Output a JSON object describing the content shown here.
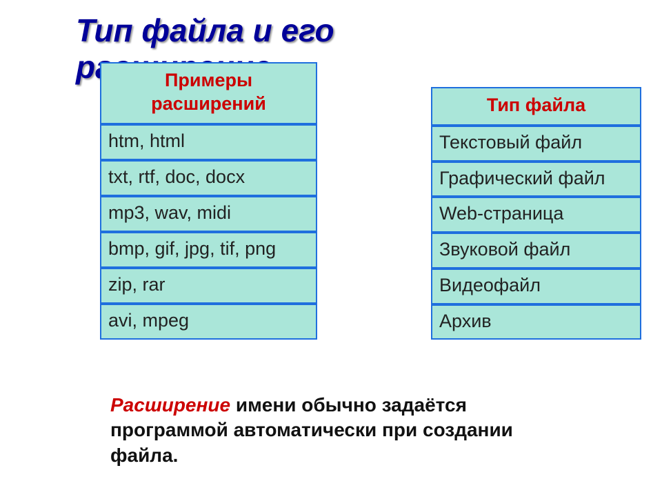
{
  "title": "Тип файла и его\nрасширение",
  "left_table": {
    "header": "Примеры расширений",
    "rows": [
      "htm, html",
      "txt, rtf, doc, docx",
      "mp3, wav, midi",
      "bmp, gif, jpg, tif, png",
      "zip, rar",
      "avi, mpeg"
    ]
  },
  "right_table": {
    "header": "Тип файла",
    "rows": [
      "Текстовый файл",
      "Графический файл",
      "Web-страница",
      "Звуковой файл",
      "Видеофайл",
      "Архив"
    ]
  },
  "footnote": {
    "emphasis": "Расширение",
    "rest": " имени обычно задаётся программой автоматически при создании файла."
  },
  "colors": {
    "title_color": "#000099",
    "header_text": "#cc0000",
    "cell_bg": "#aae6d9",
    "border": "#1f6fde",
    "footnote_em": "#cc0000"
  },
  "fonts": {
    "title_pt": 46,
    "cell_pt": 27,
    "footnote_pt": 28
  }
}
